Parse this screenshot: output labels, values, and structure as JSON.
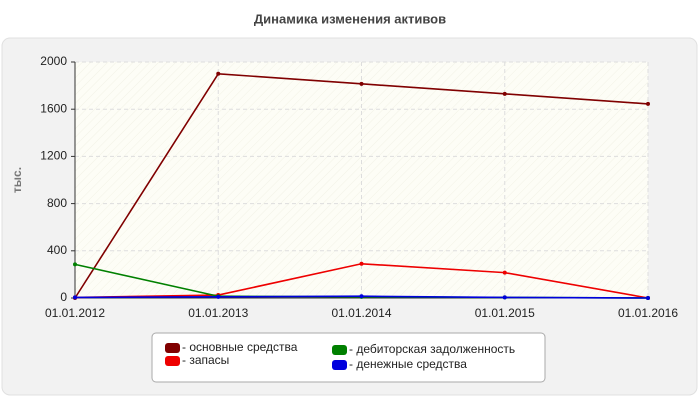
{
  "chart_data": {
    "type": "line",
    "title": "Динамика изменения активов",
    "y_label": "тыс.",
    "categories": [
      "01.01.2012",
      "01.01.2013",
      "01.01.2014",
      "01.01.2015",
      "01.01.2016"
    ],
    "series": [
      {
        "name": "- основные средства",
        "color": "#800000",
        "values": [
          0,
          1900,
          1815,
          1730,
          1645
        ]
      },
      {
        "name": "- запасы",
        "color": "#ee0000",
        "values": [
          5,
          25,
          290,
          215,
          0
        ]
      },
      {
        "name": "- дебиторская задолженность",
        "color": "#008000",
        "values": [
          285,
          15,
          10,
          5,
          0
        ]
      },
      {
        "name": "- денежные средства",
        "color": "#0000dd",
        "values": [
          5,
          10,
          15,
          5,
          0
        ]
      }
    ],
    "ylim": [
      0,
      2000
    ],
    "yticks": [
      0,
      400,
      800,
      1200,
      1600,
      2000
    ],
    "grid": true
  }
}
